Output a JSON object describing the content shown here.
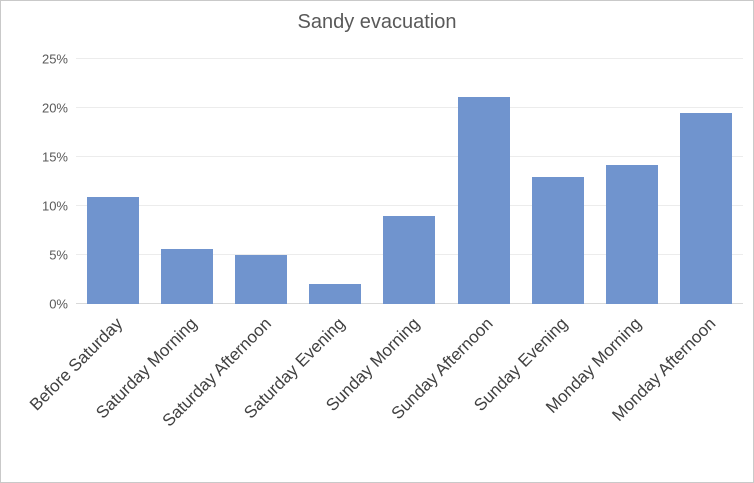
{
  "window": {
    "background": "#ffffff",
    "border_color": "#c9c9c9"
  },
  "chart_data": {
    "type": "bar",
    "title": "Sandy evacuation",
    "categories": [
      "Before Saturday",
      "Saturday Morning",
      "Saturday Afternoon",
      "Saturday Evening",
      "Sunday Morning",
      "Sunday Afternoon",
      "Sunday Evening",
      "Monday Morning",
      "Monday Afternoon"
    ],
    "values": [
      10.9,
      5.6,
      5.0,
      2.0,
      9.0,
      21.1,
      13.0,
      14.2,
      19.5
    ],
    "unit": "%",
    "xlabel": "",
    "ylabel": "",
    "ylim": [
      0,
      25
    ],
    "ytick_step": 5,
    "ytick_labels": [
      "0%",
      "5%",
      "10%",
      "15%",
      "20%",
      "25%"
    ],
    "grid": true,
    "legend": false,
    "xtick_rotation_deg": -45,
    "colors": {
      "bar": "#7094ce",
      "gridline": "#ececec",
      "axis_line": "#d9d9d9",
      "title": "#595959",
      "ytick": "#595959",
      "xtick": "#404040"
    }
  }
}
